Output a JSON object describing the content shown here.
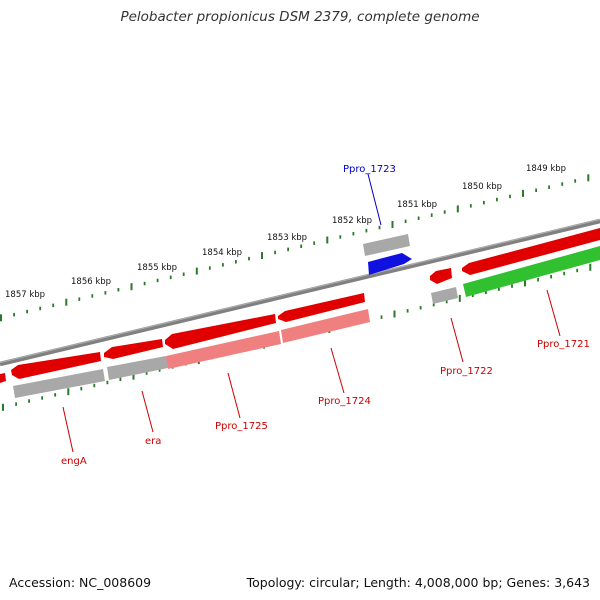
{
  "title": "Pelobacter propionicus DSM 2379, complete genome",
  "footer": {
    "accession": "Accession: NC_008609",
    "summary": "Topology: circular; Length: 4,008,000 bp; Genes: 3,643"
  },
  "colors": {
    "backbone": "#808080",
    "tick": "#2a7a2a",
    "gene_red": "#e00000",
    "gene_pink": "#f08080",
    "gene_gray": "#a8a8a8",
    "gene_blue": "#1010e0",
    "gene_green": "#30c030",
    "label_red": "#cc0000",
    "label_blue": "#0000cc"
  },
  "scale_labels": [
    {
      "kbp": 1857,
      "text": "1857 kbp"
    },
    {
      "kbp": 1856,
      "text": "1856 kbp"
    },
    {
      "kbp": 1855,
      "text": "1855 kbp"
    },
    {
      "kbp": 1854,
      "text": "1854 kbp"
    },
    {
      "kbp": 1853,
      "text": "1853 kbp"
    },
    {
      "kbp": 1852,
      "text": "1852 kbp"
    },
    {
      "kbp": 1851,
      "text": "1851 kbp"
    },
    {
      "kbp": 1850,
      "text": "1850 kbp"
    },
    {
      "kbp": 1849,
      "text": "1849 kbp"
    }
  ],
  "gene_labels": [
    {
      "text": "Ppro_1723",
      "color": "blue"
    },
    {
      "text": "Ppro_1721",
      "color": "red"
    },
    {
      "text": "Ppro_1722",
      "color": "red"
    },
    {
      "text": "Ppro_1724",
      "color": "red"
    },
    {
      "text": "Ppro_1725",
      "color": "red"
    },
    {
      "text": "era",
      "color": "red"
    },
    {
      "text": "engA",
      "color": "red"
    }
  ]
}
